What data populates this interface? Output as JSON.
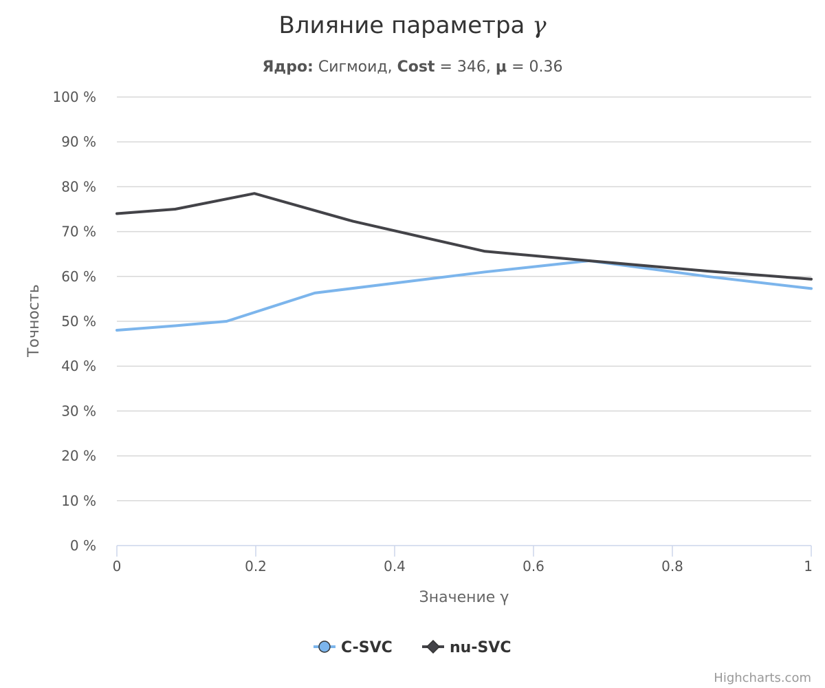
{
  "chart_data": {
    "type": "line",
    "title_main": "Влияние параметра ",
    "title_symbol": "γ",
    "subtitle": {
      "kernel_label": "Ядро:",
      "kernel_value": " Сигмоид, ",
      "cost_label": "Cost",
      "cost_value": " = 346, ",
      "mu_label": "μ",
      "mu_value": " = 0.36"
    },
    "xlabel": "Значение γ",
    "ylabel": "Точность",
    "xlim": [
      0,
      1
    ],
    "ylim": [
      0,
      100
    ],
    "x_ticks": [
      "0",
      "0.2",
      "0.4",
      "0.6",
      "0.8",
      "1"
    ],
    "y_ticks": [
      "0 %",
      "10 %",
      "20 %",
      "30 %",
      "40 %",
      "50 %",
      "60 %",
      "70 %",
      "80 %",
      "90 %",
      "100 %"
    ],
    "grid": true,
    "legend_position": "bottom-center",
    "series": [
      {
        "name": "C-SVC",
        "color": "#7cb5ec",
        "marker": "circle",
        "x": [
          0,
          0.084,
          0.158,
          0.285,
          0.53,
          0.68,
          0.85,
          1
        ],
        "y": [
          48,
          49,
          50,
          56.3,
          61,
          63.5,
          60,
          57.3
        ]
      },
      {
        "name": "nu-SVC",
        "color": "#434348",
        "marker": "diamond",
        "x": [
          0,
          0.084,
          0.198,
          0.34,
          0.53,
          0.68,
          0.85,
          1
        ],
        "y": [
          74,
          75,
          78.5,
          72.3,
          65.6,
          63.5,
          61.2,
          59.4
        ]
      }
    ],
    "credits": "Highcharts.com"
  }
}
